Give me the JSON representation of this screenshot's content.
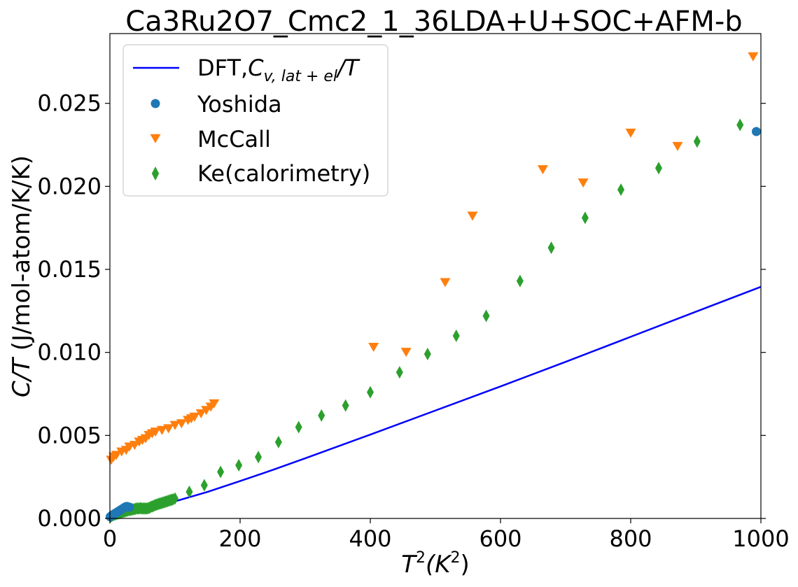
{
  "chart_data": {
    "type": "scatter",
    "title": "Ca3Ru2O7_Cmc2_1_36LDA+U+SOC+AFM-b",
    "xlabel_main": "T",
    "xlabel_sup1": "2",
    "xlabel_paren_open": "(K",
    "xlabel_sup2": "2",
    "xlabel_paren_close": ")",
    "ylabel_italic": "C/T",
    "ylabel_rest": " (J/mol-atom/K/K)",
    "xlim": [
      0,
      1000
    ],
    "ylim": [
      0,
      0.0292
    ],
    "xticks": [
      0,
      200,
      400,
      600,
      800,
      1000
    ],
    "xtick_labels": [
      "0",
      "200",
      "400",
      "600",
      "800",
      "1000"
    ],
    "yticks": [
      0,
      0.005,
      0.01,
      0.015,
      0.02,
      0.025
    ],
    "ytick_labels": [
      "0.000",
      "0.005",
      "0.010",
      "0.015",
      "0.020",
      "0.025"
    ],
    "grid": false,
    "legend_position": "upper-left",
    "legend": {
      "dft_prefix": "DFT,",
      "dft_c": "C",
      "dft_sub": "v, lat + el",
      "dft_suffix": "/T",
      "yoshida": "Yoshida",
      "mccall": "McCall",
      "ke": "Ke(calorimetry)"
    },
    "colors": {
      "dft": "#0000ff",
      "yoshida": "#1f77b4",
      "mccall": "#ff7f0e",
      "ke": "#2ca02c"
    },
    "series": [
      {
        "name": "dft",
        "type": "line",
        "x": [
          0,
          10,
          20,
          30,
          40,
          50,
          60,
          80,
          100,
          150,
          200,
          250,
          300,
          400,
          500,
          600,
          700,
          800,
          900,
          1000
        ],
        "y": [
          0.0001,
          0.00015,
          0.0002,
          0.00028,
          0.00037,
          0.00047,
          0.00058,
          0.0008,
          0.00103,
          0.0016,
          0.00225,
          0.00292,
          0.00362,
          0.00505,
          0.0065,
          0.00795,
          0.00943,
          0.01094,
          0.01245,
          0.01395
        ]
      },
      {
        "name": "yoshida",
        "type": "scatter",
        "x": [
          0.5,
          2,
          4,
          6,
          8,
          10,
          12,
          14,
          16,
          18,
          20,
          22,
          24,
          26,
          28,
          30,
          993
        ],
        "y": [
          0.0001,
          0.00015,
          0.0002,
          0.00025,
          0.0003,
          0.00035,
          0.0004,
          0.00045,
          0.0005,
          0.00055,
          0.0006,
          0.00065,
          0.0007,
          0.00072,
          0.0007,
          0.00068,
          0.0233
        ]
      },
      {
        "name": "mccall",
        "type": "scatter",
        "x": [
          2,
          6,
          10,
          18,
          25,
          30,
          38,
          45,
          50,
          55,
          60,
          65,
          70,
          80,
          90,
          100,
          110,
          120,
          125,
          130,
          140,
          148,
          155,
          160,
          405,
          455,
          515,
          557,
          665,
          727,
          800,
          872,
          988
        ],
        "y": [
          0.0035,
          0.0037,
          0.0038,
          0.004,
          0.0041,
          0.0043,
          0.0044,
          0.0046,
          0.0047,
          0.0048,
          0.005,
          0.0051,
          0.0052,
          0.0053,
          0.0054,
          0.0056,
          0.0057,
          0.0059,
          0.006,
          0.0061,
          0.0063,
          0.0065,
          0.0067,
          0.0069,
          0.0103,
          0.01,
          0.0142,
          0.0182,
          0.021,
          0.0202,
          0.0232,
          0.0224,
          0.0278
        ]
      },
      {
        "name": "ke",
        "type": "scatter",
        "x": [
          1,
          3,
          5,
          7,
          9,
          11,
          13,
          15,
          17,
          19,
          21,
          23,
          25,
          27,
          29,
          31,
          33,
          35,
          37,
          39,
          41,
          43,
          45,
          47,
          49,
          51,
          53,
          55,
          57,
          59,
          61,
          63,
          65,
          67,
          69,
          71,
          73,
          75,
          77,
          79,
          81,
          83,
          85,
          87,
          89,
          91,
          93,
          95,
          97,
          100,
          122,
          145,
          170,
          198,
          228,
          259,
          290,
          325,
          362,
          400,
          445,
          488,
          532,
          578,
          630,
          678,
          730,
          785,
          843,
          902,
          968
        ],
        "y": [
          0.0001,
          0.00015,
          0.0002,
          0.00022,
          0.00025,
          0.00028,
          0.0003,
          0.00032,
          0.00035,
          0.00037,
          0.0004,
          0.00042,
          0.00045,
          0.00047,
          0.0005,
          0.0005,
          0.00052,
          0.00055,
          0.00055,
          0.00058,
          0.0006,
          0.0006,
          0.0006,
          0.00062,
          0.0006,
          0.0006,
          0.0006,
          0.0006,
          0.0006,
          0.00062,
          0.00065,
          0.0007,
          0.00072,
          0.00075,
          0.0008,
          0.00082,
          0.00085,
          0.00088,
          0.0009,
          0.00092,
          0.00095,
          0.00097,
          0.001,
          0.00102,
          0.00105,
          0.00108,
          0.0011,
          0.00112,
          0.00115,
          0.0012,
          0.0016,
          0.002,
          0.0028,
          0.0032,
          0.0037,
          0.0046,
          0.0055,
          0.0062,
          0.0068,
          0.0076,
          0.0088,
          0.0099,
          0.011,
          0.0122,
          0.0143,
          0.0163,
          0.0181,
          0.0198,
          0.0211,
          0.0227,
          0.0237
        ]
      }
    ]
  }
}
